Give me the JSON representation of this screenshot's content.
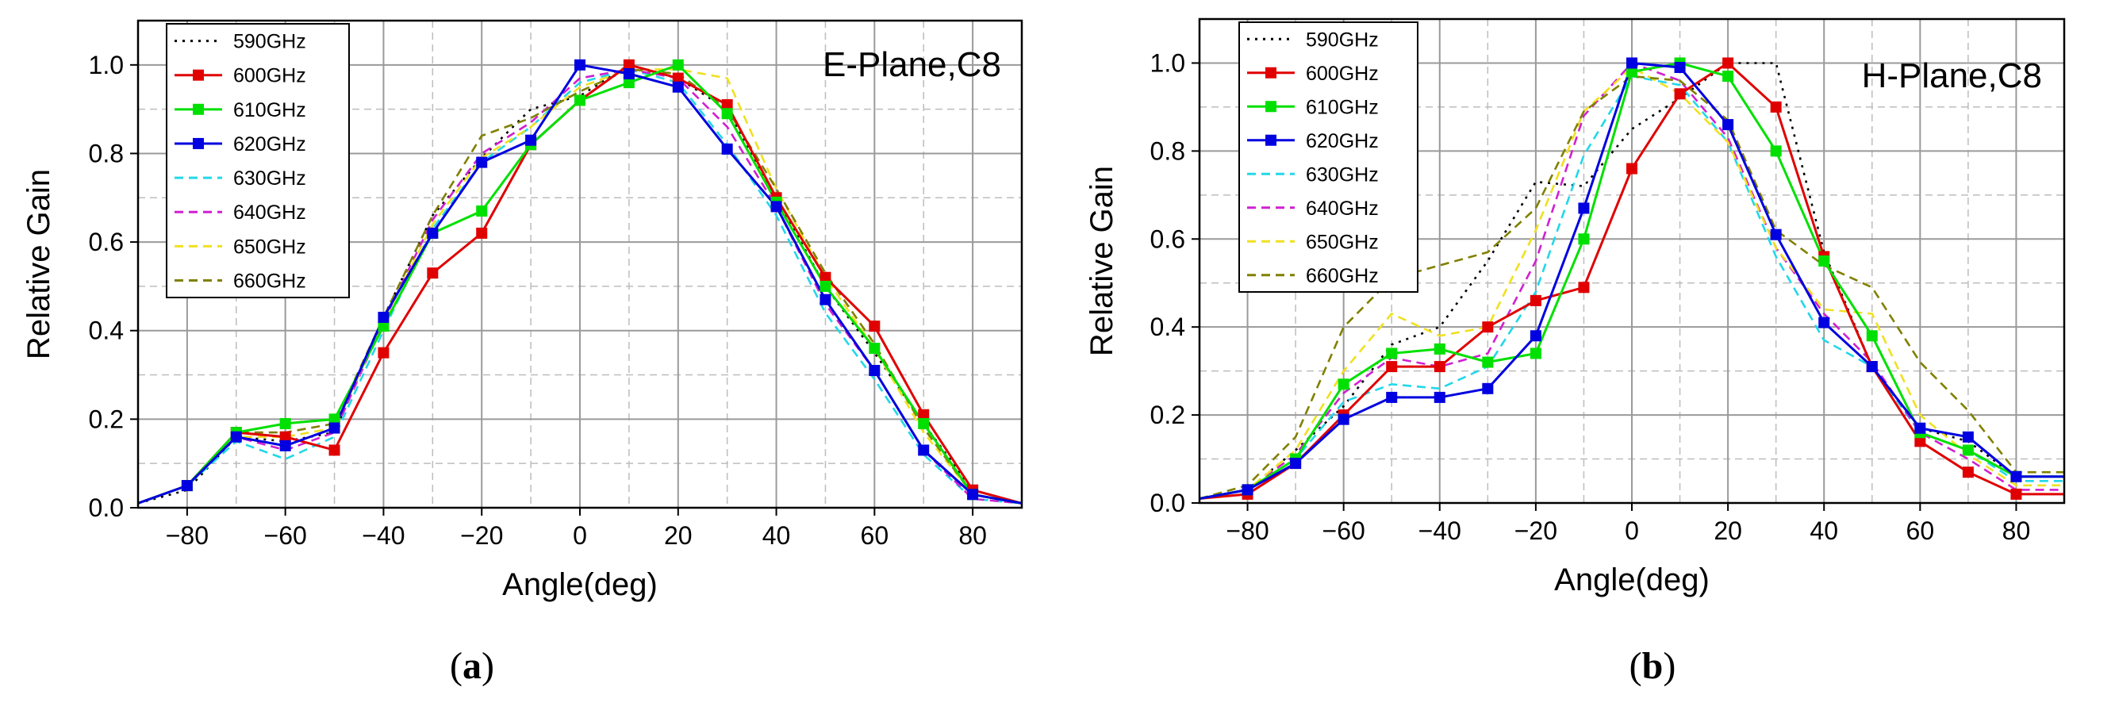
{
  "chart_data": [
    {
      "type": "line",
      "panel": "a",
      "caption_letter": "a",
      "plane_label": "E-Plane,C8",
      "xlabel": "Angle(deg)",
      "ylabel": "Relative Gain",
      "xlim": [
        -90,
        90
      ],
      "ylim": [
        0,
        1.1
      ],
      "xticks": [
        -80,
        -60,
        -40,
        -20,
        0,
        20,
        40,
        60,
        80
      ],
      "xtick_labels": [
        "−80",
        "−60",
        "−40",
        "−20",
        "0",
        "20",
        "40",
        "60",
        "80"
      ],
      "yticks": [
        0,
        0.2,
        0.4,
        0.6,
        0.8,
        1.0
      ],
      "ytick_labels": [
        "0.0",
        "0.2",
        "0.4",
        "0.6",
        "0.8",
        "1.0"
      ],
      "grid": true,
      "legend_position": "top-left",
      "x": [
        -90,
        -80,
        -70,
        -60,
        -50,
        -40,
        -30,
        -20,
        -10,
        0,
        10,
        20,
        30,
        40,
        50,
        60,
        70,
        80,
        90
      ],
      "series": [
        {
          "name": "590GHz",
          "color": "#000000",
          "style": "dotted",
          "marker": false,
          "values": [
            0.01,
            0.04,
            0.16,
            0.15,
            0.17,
            0.43,
            0.66,
            0.79,
            0.9,
            0.93,
            1.0,
            0.97,
            0.9,
            0.7,
            0.5,
            0.35,
            0.19,
            0.04,
            0.01
          ]
        },
        {
          "name": "600GHz",
          "color": "#e00000",
          "style": "solid",
          "marker": true,
          "values": [
            0.01,
            0.05,
            0.17,
            0.16,
            0.13,
            0.35,
            0.53,
            0.62,
            0.82,
            0.92,
            1.0,
            0.97,
            0.91,
            0.7,
            0.52,
            0.41,
            0.21,
            0.04,
            0.01
          ]
        },
        {
          "name": "610GHz",
          "color": "#00e000",
          "style": "solid",
          "marker": true,
          "values": [
            0.01,
            0.05,
            0.17,
            0.19,
            0.2,
            0.41,
            0.62,
            0.67,
            0.82,
            0.92,
            0.96,
            1.0,
            0.89,
            0.69,
            0.5,
            0.36,
            0.19,
            0.03,
            0.01
          ]
        },
        {
          "name": "620GHz",
          "color": "#0000e0",
          "style": "solid",
          "marker": true,
          "values": [
            0.01,
            0.05,
            0.16,
            0.14,
            0.18,
            0.43,
            0.62,
            0.78,
            0.83,
            1.0,
            0.98,
            0.95,
            0.81,
            0.68,
            0.47,
            0.31,
            0.13,
            0.03,
            0.01
          ]
        },
        {
          "name": "630GHz",
          "color": "#22d8e8",
          "style": "dashed",
          "marker": false,
          "values": [
            0.01,
            0.05,
            0.15,
            0.11,
            0.16,
            0.4,
            0.63,
            0.78,
            0.86,
            0.96,
            0.99,
            0.96,
            0.82,
            0.66,
            0.44,
            0.29,
            0.12,
            0.02,
            0.01
          ]
        },
        {
          "name": "640GHz",
          "color": "#d020d0",
          "style": "dashed",
          "marker": false,
          "values": [
            0.01,
            0.05,
            0.16,
            0.13,
            0.17,
            0.42,
            0.65,
            0.8,
            0.87,
            0.97,
            0.99,
            0.97,
            0.86,
            0.68,
            0.46,
            0.31,
            0.13,
            0.02,
            0.01
          ]
        },
        {
          "name": "650GHz",
          "color": "#f0e020",
          "style": "dashed",
          "marker": false,
          "values": [
            0.01,
            0.05,
            0.16,
            0.16,
            0.18,
            0.42,
            0.64,
            0.79,
            0.86,
            0.95,
            0.99,
            0.99,
            0.97,
            0.72,
            0.52,
            0.36,
            0.17,
            0.03,
            0.01
          ]
        },
        {
          "name": "660GHz",
          "color": "#808000",
          "style": "dashed",
          "marker": false,
          "values": [
            0.01,
            0.05,
            0.17,
            0.17,
            0.19,
            0.43,
            0.66,
            0.84,
            0.88,
            0.94,
            0.99,
            0.98,
            0.9,
            0.72,
            0.53,
            0.37,
            0.18,
            0.03,
            0.01
          ]
        }
      ]
    },
    {
      "type": "line",
      "panel": "b",
      "caption_letter": "b",
      "plane_label": "H-Plane,C8",
      "xlabel": "Angle(deg)",
      "ylabel": "Relative Gain",
      "xlim": [
        -90,
        90
      ],
      "ylim": [
        0,
        1.1
      ],
      "xticks": [
        -80,
        -60,
        -40,
        -20,
        0,
        20,
        40,
        60,
        80
      ],
      "xtick_labels": [
        "−80",
        "−60",
        "−40",
        "−20",
        "0",
        "20",
        "40",
        "60",
        "80"
      ],
      "yticks": [
        0,
        0.2,
        0.4,
        0.6,
        0.8,
        1.0
      ],
      "ytick_labels": [
        "0.0",
        "0.2",
        "0.4",
        "0.6",
        "0.8",
        "1.0"
      ],
      "grid": true,
      "legend_position": "top-left",
      "x": [
        -90,
        -80,
        -70,
        -60,
        -50,
        -40,
        -30,
        -20,
        -10,
        0,
        10,
        20,
        30,
        40,
        50,
        60,
        70,
        80,
        90
      ],
      "series": [
        {
          "name": "590GHz",
          "color": "#000000",
          "style": "dotted",
          "marker": false,
          "values": [
            0.01,
            0.03,
            0.12,
            0.22,
            0.36,
            0.4,
            0.55,
            0.73,
            0.72,
            0.85,
            0.92,
            1.0,
            1.0,
            0.57,
            0.31,
            0.17,
            0.14,
            0.06,
            0.06
          ]
        },
        {
          "name": "600GHz",
          "color": "#e00000",
          "style": "solid",
          "marker": true,
          "values": [
            0.01,
            0.02,
            0.09,
            0.2,
            0.31,
            0.31,
            0.4,
            0.46,
            0.49,
            0.76,
            0.93,
            1.0,
            0.9,
            0.56,
            0.31,
            0.14,
            0.07,
            0.02,
            0.02
          ]
        },
        {
          "name": "610GHz",
          "color": "#00e000",
          "style": "solid",
          "marker": true,
          "values": [
            0.01,
            0.03,
            0.1,
            0.27,
            0.34,
            0.35,
            0.32,
            0.34,
            0.6,
            0.98,
            1.0,
            0.97,
            0.8,
            0.55,
            0.38,
            0.16,
            0.12,
            0.06,
            0.06
          ]
        },
        {
          "name": "620GHz",
          "color": "#0000e0",
          "style": "solid",
          "marker": true,
          "values": [
            0.01,
            0.03,
            0.09,
            0.19,
            0.24,
            0.24,
            0.26,
            0.38,
            0.67,
            1.0,
            0.99,
            0.86,
            0.61,
            0.41,
            0.31,
            0.17,
            0.15,
            0.06,
            0.06
          ]
        },
        {
          "name": "630GHz",
          "color": "#22d8e8",
          "style": "dashed",
          "marker": false,
          "values": [
            0.01,
            0.03,
            0.1,
            0.23,
            0.27,
            0.26,
            0.31,
            0.48,
            0.79,
            0.97,
            0.95,
            0.82,
            0.56,
            0.37,
            0.31,
            0.16,
            0.12,
            0.05,
            0.05
          ]
        },
        {
          "name": "640GHz",
          "color": "#d020d0",
          "style": "dashed",
          "marker": false,
          "values": [
            0.01,
            0.03,
            0.11,
            0.25,
            0.33,
            0.31,
            0.34,
            0.55,
            0.88,
            1.0,
            0.96,
            0.83,
            0.58,
            0.43,
            0.32,
            0.16,
            0.1,
            0.03,
            0.03
          ]
        },
        {
          "name": "650GHz",
          "color": "#f0e020",
          "style": "dashed",
          "marker": false,
          "values": [
            0.01,
            0.03,
            0.12,
            0.3,
            0.43,
            0.38,
            0.4,
            0.62,
            0.89,
            0.99,
            0.93,
            0.82,
            0.58,
            0.44,
            0.43,
            0.2,
            0.11,
            0.04,
            0.04
          ]
        },
        {
          "name": "660GHz",
          "color": "#808000",
          "style": "dashed",
          "marker": false,
          "values": [
            0.01,
            0.04,
            0.15,
            0.4,
            0.51,
            0.54,
            0.57,
            0.67,
            0.89,
            0.97,
            0.96,
            0.87,
            0.62,
            0.54,
            0.49,
            0.32,
            0.21,
            0.07,
            0.07
          ]
        }
      ]
    }
  ]
}
